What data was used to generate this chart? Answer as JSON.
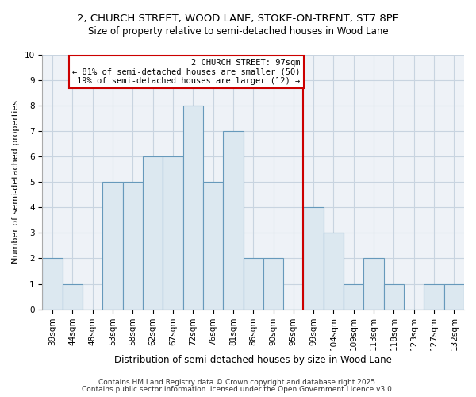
{
  "title1": "2, CHURCH STREET, WOOD LANE, STOKE-ON-TRENT, ST7 8PE",
  "title2": "Size of property relative to semi-detached houses in Wood Lane",
  "xlabel": "Distribution of semi-detached houses by size in Wood Lane",
  "ylabel": "Number of semi-detached properties",
  "categories": [
    "39sqm",
    "44sqm",
    "48sqm",
    "53sqm",
    "58sqm",
    "62sqm",
    "67sqm",
    "72sqm",
    "76sqm",
    "81sqm",
    "86sqm",
    "90sqm",
    "95sqm",
    "99sqm",
    "104sqm",
    "109sqm",
    "113sqm",
    "118sqm",
    "123sqm",
    "127sqm",
    "132sqm"
  ],
  "values": [
    2,
    1,
    0,
    5,
    5,
    6,
    6,
    8,
    5,
    7,
    2,
    2,
    0,
    4,
    3,
    1,
    2,
    1,
    0,
    1,
    1
  ],
  "bar_color": "#dce8f0",
  "bar_edge_color": "#6699bb",
  "property_label": "2 CHURCH STREET: 97sqm",
  "annotation_line1": "← 81% of semi-detached houses are smaller (50)",
  "annotation_line2": "19% of semi-detached houses are larger (12) →",
  "vline_color": "#cc0000",
  "vline_x_index": 12.5,
  "ylim": [
    0,
    10
  ],
  "yticks": [
    0,
    1,
    2,
    3,
    4,
    5,
    6,
    7,
    8,
    9,
    10
  ],
  "footnote1": "Contains HM Land Registry data © Crown copyright and database right 2025.",
  "footnote2": "Contains public sector information licensed under the Open Government Licence v3.0.",
  "bg_color": "#eef2f7",
  "grid_color": "#c8d4e0",
  "title1_fontsize": 9.5,
  "title2_fontsize": 8.5,
  "xlabel_fontsize": 8.5,
  "ylabel_fontsize": 8.0,
  "tick_fontsize": 7.5,
  "footnote_fontsize": 6.5,
  "annot_fontsize": 7.5
}
